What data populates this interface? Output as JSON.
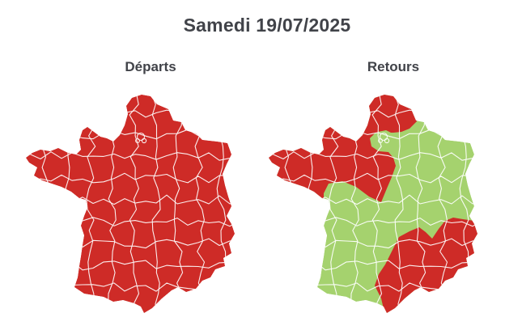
{
  "page": {
    "title": "Samedi 19/07/2025"
  },
  "maps": [
    {
      "id": "departs",
      "label": "Départs",
      "base_status": "red",
      "red_zones": [
        "entire-country"
      ],
      "green_zones": []
    },
    {
      "id": "retours",
      "label": "Retours",
      "base_status": "green",
      "red_zones": [
        "northwest",
        "southeast-mediterranean"
      ],
      "green_zones": [
        "ile-de-france"
      ]
    }
  ],
  "colors": {
    "red": "#CE2B27",
    "green": "#A5D26E",
    "border": "#FFFFFF",
    "text": "#414349",
    "background": "#FFFFFF"
  }
}
